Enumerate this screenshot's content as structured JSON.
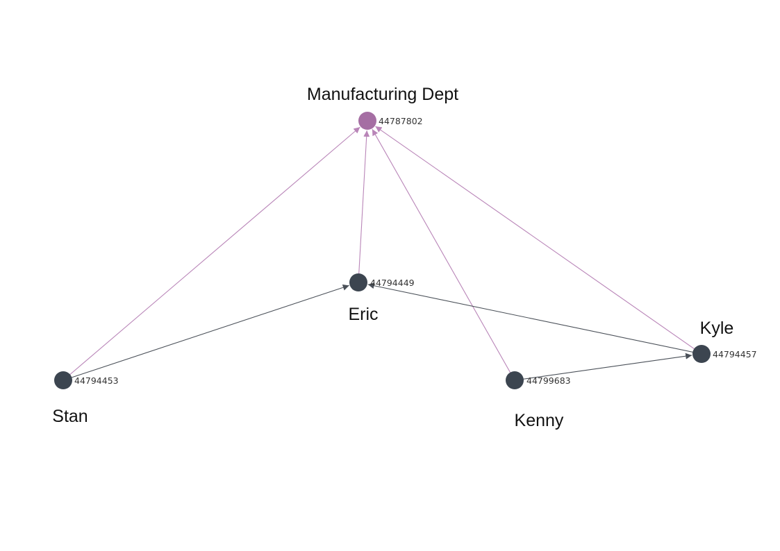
{
  "colors": {
    "department_node": "#a56ea3",
    "person_node": "#3c4550",
    "member_edge": "#b985b8",
    "peer_edge": "#4a5058",
    "background": "#ffffff"
  },
  "nodes": {
    "dept": {
      "label": "Manufacturing Dept",
      "id": "44787802"
    },
    "eric": {
      "label": "Eric",
      "id": "44794449"
    },
    "stan": {
      "label": "Stan",
      "id": "44794453"
    },
    "kenny": {
      "label": "Kenny",
      "id": "44799683"
    },
    "kyle": {
      "label": "Kyle",
      "id": "44794457"
    }
  },
  "edges": [
    {
      "from": "stan",
      "to": "dept",
      "kind": "member"
    },
    {
      "from": "eric",
      "to": "dept",
      "kind": "member"
    },
    {
      "from": "kenny",
      "to": "dept",
      "kind": "member"
    },
    {
      "from": "kyle",
      "to": "dept",
      "kind": "member"
    },
    {
      "from": "stan",
      "to": "eric",
      "kind": "peer"
    },
    {
      "from": "kyle",
      "to": "eric",
      "kind": "peer"
    },
    {
      "from": "kenny",
      "to": "kyle",
      "kind": "peer"
    }
  ]
}
